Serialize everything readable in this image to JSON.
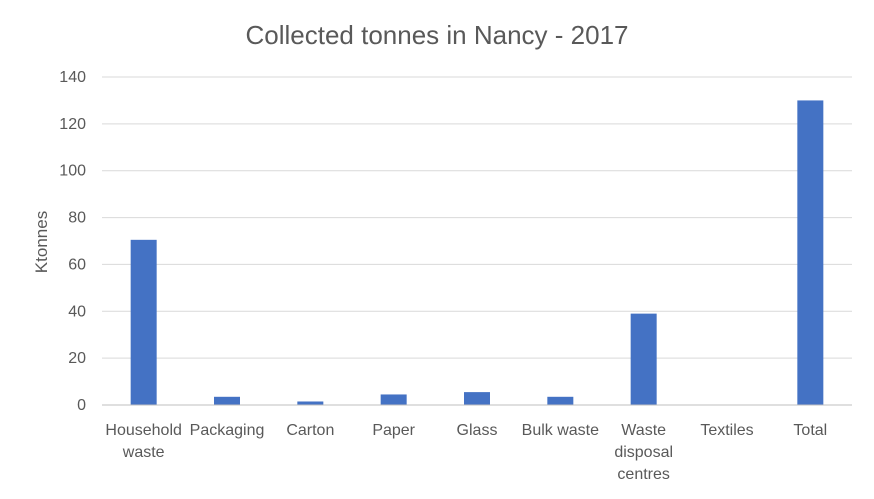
{
  "chart_data": {
    "type": "bar",
    "title": "Collected tonnes in Nancy - 2017",
    "ylabel": "Ktonnes",
    "xlabel": "",
    "categories": [
      [
        "Household",
        "waste"
      ],
      [
        "Packaging"
      ],
      [
        "Carton"
      ],
      [
        "Paper"
      ],
      [
        "Glass"
      ],
      [
        "Bulk waste"
      ],
      [
        "Waste",
        "disposal",
        "centres"
      ],
      [
        "Textiles"
      ],
      [
        "Total"
      ]
    ],
    "values": [
      70.5,
      3.5,
      1.5,
      4.5,
      5.5,
      3.5,
      39,
      0,
      130
    ],
    "ylim": [
      0,
      140
    ],
    "yticks": [
      0,
      20,
      40,
      60,
      80,
      100,
      120,
      140
    ],
    "grid": true,
    "legend": "none",
    "colors": {
      "bar": "#4472c4"
    }
  }
}
